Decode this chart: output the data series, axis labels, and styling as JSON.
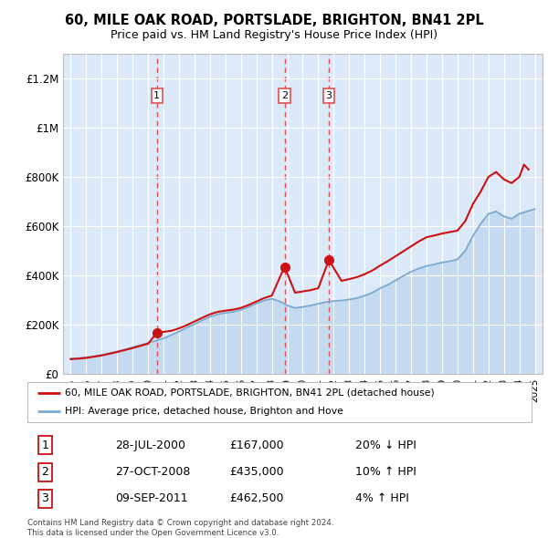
{
  "title": "60, MILE OAK ROAD, PORTSLADE, BRIGHTON, BN41 2PL",
  "subtitle": "Price paid vs. HM Land Registry's House Price Index (HPI)",
  "background_color": "#ffffff",
  "plot_bg_color": "#dce9f8",
  "legend_entries": [
    "60, MILE OAK ROAD, PORTSLADE, BRIGHTON, BN41 2PL (detached house)",
    "HPI: Average price, detached house, Brighton and Hove"
  ],
  "transactions": [
    {
      "num": 1,
      "date": "28-JUL-2000",
      "price": "£167,000",
      "pct": "20%",
      "dir": "↓",
      "year": 2000.57
    },
    {
      "num": 2,
      "date": "27-OCT-2008",
      "price": "£435,000",
      "pct": "10%",
      "dir": "↑",
      "year": 2008.82
    },
    {
      "num": 3,
      "date": "09-SEP-2011",
      "price": "£462,500",
      "pct": "4%",
      "dir": "↑",
      "year": 2011.69
    }
  ],
  "transaction_values": [
    167000,
    435000,
    462500
  ],
  "transaction_years": [
    2000.57,
    2008.82,
    2011.69
  ],
  "hpi_years": [
    1995.0,
    1995.5,
    1996.0,
    1996.5,
    1997.0,
    1997.5,
    1998.0,
    1998.5,
    1999.0,
    1999.5,
    2000.0,
    2000.5,
    2001.0,
    2001.5,
    2002.0,
    2002.5,
    2003.0,
    2003.5,
    2004.0,
    2004.5,
    2005.0,
    2005.5,
    2006.0,
    2006.5,
    2007.0,
    2007.5,
    2008.0,
    2008.5,
    2009.0,
    2009.5,
    2010.0,
    2010.5,
    2011.0,
    2011.5,
    2012.0,
    2012.5,
    2013.0,
    2013.5,
    2014.0,
    2014.5,
    2015.0,
    2015.5,
    2016.0,
    2016.5,
    2017.0,
    2017.5,
    2018.0,
    2018.5,
    2019.0,
    2019.5,
    2020.0,
    2020.5,
    2021.0,
    2021.5,
    2022.0,
    2022.5,
    2023.0,
    2023.5,
    2024.0,
    2024.5,
    2025.0
  ],
  "hpi_values": [
    62000,
    64000,
    67000,
    72000,
    77000,
    84000,
    91000,
    99000,
    108000,
    117000,
    126000,
    135000,
    145000,
    158000,
    172000,
    188000,
    202000,
    218000,
    232000,
    242000,
    248000,
    252000,
    260000,
    272000,
    286000,
    298000,
    305000,
    295000,
    278000,
    268000,
    272000,
    278000,
    285000,
    292000,
    296000,
    298000,
    302000,
    308000,
    318000,
    330000,
    348000,
    362000,
    380000,
    398000,
    415000,
    428000,
    438000,
    445000,
    452000,
    458000,
    465000,
    500000,
    560000,
    610000,
    650000,
    660000,
    640000,
    630000,
    650000,
    660000,
    670000
  ],
  "property_years": [
    1995.0,
    1995.5,
    1996.0,
    1996.5,
    1997.0,
    1997.5,
    1998.0,
    1998.5,
    1999.0,
    1999.5,
    2000.0,
    2000.57,
    2001.5,
    2002.0,
    2002.5,
    2003.0,
    2003.5,
    2004.0,
    2004.5,
    2005.0,
    2005.5,
    2006.0,
    2006.5,
    2007.0,
    2007.5,
    2008.0,
    2008.82,
    2009.5,
    2010.0,
    2010.5,
    2011.0,
    2011.69,
    2012.5,
    2013.0,
    2013.5,
    2014.0,
    2014.5,
    2015.0,
    2015.5,
    2016.0,
    2016.5,
    2017.0,
    2017.5,
    2018.0,
    2018.5,
    2019.0,
    2019.5,
    2020.0,
    2020.5,
    2021.0,
    2021.5,
    2022.0,
    2022.5,
    2023.0,
    2023.5,
    2024.0,
    2024.3,
    2024.6
  ],
  "property_values": [
    60000,
    62000,
    65000,
    70000,
    75000,
    82000,
    89000,
    97000,
    105000,
    114000,
    123000,
    167000,
    175000,
    185000,
    198000,
    213000,
    228000,
    242000,
    252000,
    257000,
    261000,
    268000,
    280000,
    294000,
    308000,
    318000,
    435000,
    330000,
    335000,
    340000,
    348000,
    462500,
    378000,
    385000,
    393000,
    405000,
    420000,
    440000,
    458000,
    478000,
    498000,
    518000,
    538000,
    555000,
    562000,
    570000,
    576000,
    582000,
    620000,
    690000,
    740000,
    800000,
    820000,
    790000,
    775000,
    800000,
    850000,
    830000
  ],
  "xlim": [
    1994.5,
    2025.5
  ],
  "ylim": [
    0,
    1300000
  ],
  "yticks": [
    0,
    200000,
    400000,
    600000,
    800000,
    1000000,
    1200000
  ],
  "ytick_labels": [
    "£0",
    "£200K",
    "£400K",
    "£600K",
    "£800K",
    "£1M",
    "£1.2M"
  ],
  "xticks": [
    1995,
    1996,
    1997,
    1998,
    1999,
    2000,
    2001,
    2002,
    2003,
    2004,
    2005,
    2006,
    2007,
    2008,
    2009,
    2010,
    2011,
    2012,
    2013,
    2014,
    2015,
    2016,
    2017,
    2018,
    2019,
    2020,
    2021,
    2022,
    2023,
    2024,
    2025
  ],
  "dashed_line_color": "#e05050",
  "property_line_color": "#cc1111",
  "hpi_line_color": "#7aaad0",
  "hpi_fill_color": "#c5daf0",
  "marker_color": "#cc1111",
  "footer": "Contains HM Land Registry data © Crown copyright and database right 2024.\nThis data is licensed under the Open Government Licence v3.0."
}
